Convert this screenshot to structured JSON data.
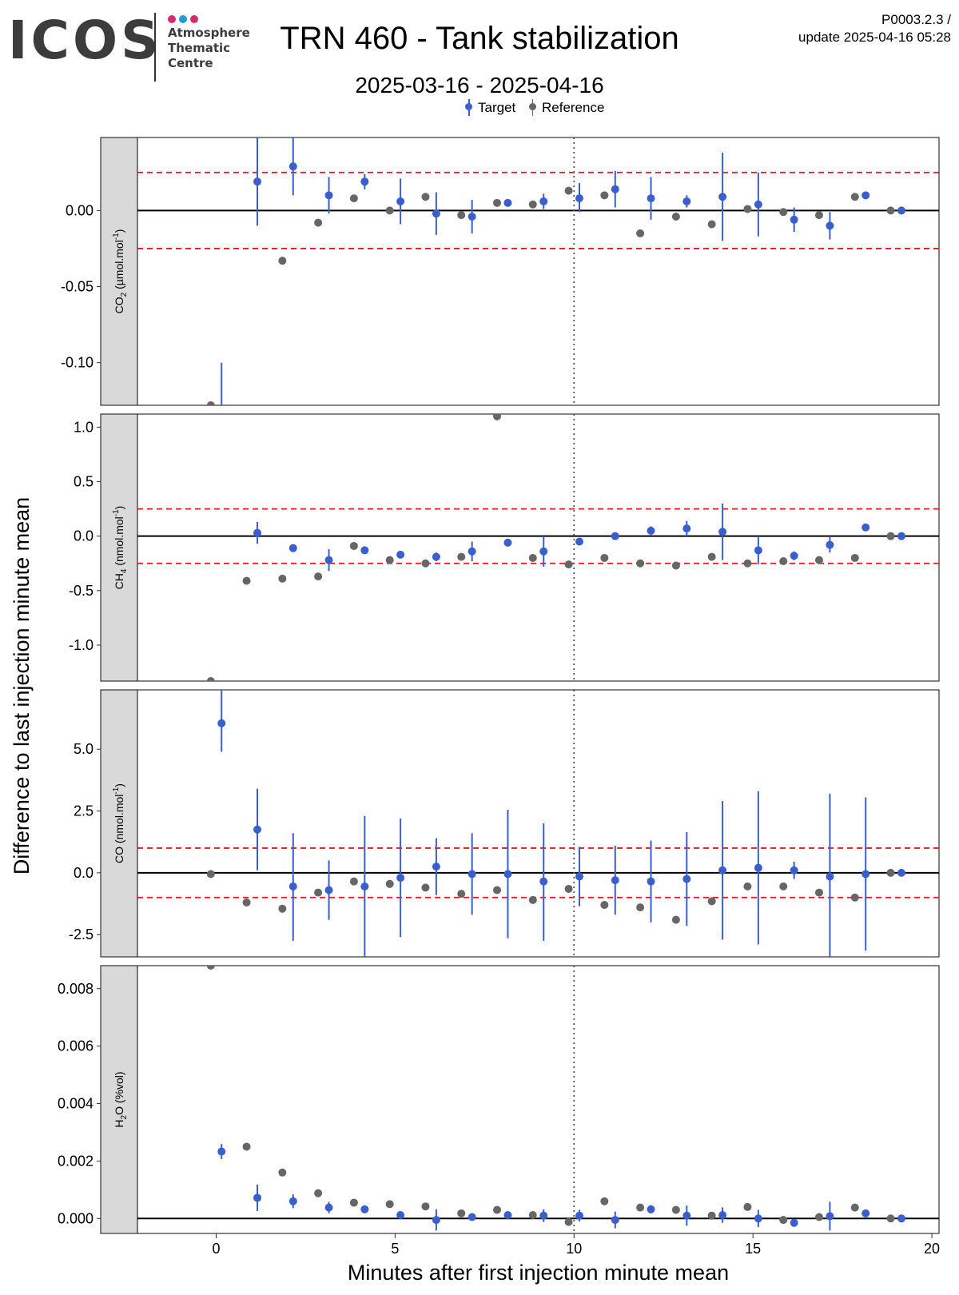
{
  "header": {
    "logo_text": "ICOS",
    "logo_subtitle": [
      "Atmosphere",
      "Thematic",
      "Centre"
    ],
    "logo_dot_colors": [
      "#d42d6b",
      "#1f9bd7",
      "#d42d6b"
    ],
    "title": "TRN 460 - Tank stabilization",
    "subtitle": "2025-03-16 - 2025-04-16",
    "meta_line1": "P0003.2.3 /",
    "meta_line2": "update  2025-04-16 05:28"
  },
  "legend": {
    "target": "Target",
    "reference": "Reference"
  },
  "colors": {
    "target": "#3a5fcd",
    "reference": "#666666",
    "threshold": "#e8171c",
    "zero": "#000000",
    "strip": "#d9d9d9"
  },
  "chart_data": {
    "type": "scatter",
    "xlabel": "Minutes after first injection minute mean",
    "ylabel": "Difference to last injection minute mean",
    "xlim": [
      -2.2,
      20.2
    ],
    "x_ticks": [
      0,
      5,
      10,
      15,
      20
    ],
    "vline_x": 10,
    "grid": false,
    "legend_position": "top",
    "panels": [
      {
        "strip": [
          "CO",
          "2",
          " (µmol.mol",
          "-1",
          ")"
        ],
        "ylim": [
          -0.128,
          0.048
        ],
        "yticks": [
          0.0,
          -0.05,
          -0.1
        ],
        "ytick_labels": [
          "0.00",
          "-0.05",
          "-0.10"
        ],
        "threshold": 0.025,
        "reference": [
          [
            -0.15,
            -0.128
          ],
          [
            0.85,
            -0.132
          ],
          [
            1.85,
            -0.033
          ],
          [
            2.85,
            -0.008
          ],
          [
            3.85,
            0.008
          ],
          [
            4.85,
            0.0
          ],
          [
            5.85,
            0.009
          ],
          [
            6.85,
            -0.003
          ],
          [
            7.85,
            0.005
          ],
          [
            8.85,
            0.004
          ],
          [
            9.85,
            0.013
          ],
          [
            10.85,
            0.01
          ],
          [
            11.85,
            -0.015
          ],
          [
            12.85,
            -0.004
          ],
          [
            13.85,
            -0.009
          ],
          [
            14.85,
            0.001
          ],
          [
            15.85,
            -0.001
          ],
          [
            16.85,
            -0.003
          ],
          [
            17.85,
            0.009
          ],
          [
            18.85,
            0.0
          ]
        ],
        "target": [
          [
            0.15,
            -0.15,
            -0.2,
            -0.1
          ],
          [
            1.15,
            0.019,
            -0.01,
            0.048
          ],
          [
            2.15,
            0.029,
            0.01,
            0.048
          ],
          [
            3.15,
            0.01,
            -0.002,
            0.022
          ],
          [
            4.15,
            0.019,
            0.014,
            0.024
          ],
          [
            5.15,
            0.006,
            -0.009,
            0.021
          ],
          [
            6.15,
            -0.002,
            -0.016,
            0.012
          ],
          [
            7.15,
            -0.004,
            -0.015,
            0.007
          ],
          [
            8.15,
            0.005,
            0.005,
            0.005
          ],
          [
            9.15,
            0.006,
            0.001,
            0.011
          ],
          [
            10.15,
            0.008,
            -0.001,
            0.018
          ],
          [
            11.15,
            0.014,
            0.002,
            0.026
          ],
          [
            12.15,
            0.008,
            -0.006,
            0.022
          ],
          [
            13.15,
            0.006,
            0.002,
            0.01
          ],
          [
            14.15,
            0.009,
            -0.02,
            0.038
          ],
          [
            15.15,
            0.004,
            -0.017,
            0.025
          ],
          [
            16.15,
            -0.006,
            -0.014,
            0.002
          ],
          [
            17.15,
            -0.01,
            -0.019,
            -0.001
          ],
          [
            18.15,
            0.01,
            0.01,
            0.01
          ],
          [
            19.15,
            0.0,
            0.0,
            0.0
          ]
        ]
      },
      {
        "strip": [
          "CH",
          "4",
          " (nmol.mol",
          "-1",
          ")"
        ],
        "ylim": [
          -1.33,
          1.12
        ],
        "yticks": [
          1.0,
          0.5,
          0.0,
          -0.5,
          -1.0
        ],
        "ytick_labels": [
          "1.0",
          "0.5",
          "0.0",
          "-0.5",
          "-1.0"
        ],
        "threshold": 0.25,
        "reference": [
          [
            -0.15,
            -1.33
          ],
          [
            0.85,
            -0.41
          ],
          [
            1.85,
            -0.39
          ],
          [
            2.85,
            -0.37
          ],
          [
            3.85,
            -0.09
          ],
          [
            4.85,
            -0.22
          ],
          [
            5.85,
            -0.25
          ],
          [
            6.85,
            -0.19
          ],
          [
            7.85,
            1.1
          ],
          [
            8.85,
            -0.2
          ],
          [
            9.85,
            -0.26
          ],
          [
            10.85,
            -0.2
          ],
          [
            11.85,
            -0.25
          ],
          [
            12.85,
            -0.27
          ],
          [
            13.85,
            -0.19
          ],
          [
            14.85,
            -0.25
          ],
          [
            15.85,
            -0.23
          ],
          [
            16.85,
            -0.22
          ],
          [
            17.85,
            -0.2
          ],
          [
            18.85,
            0.0
          ]
        ],
        "target": [
          [
            1.15,
            0.03,
            -0.07,
            0.13
          ],
          [
            2.15,
            -0.11,
            -0.11,
            -0.11
          ],
          [
            3.15,
            -0.22,
            -0.32,
            -0.12
          ],
          [
            4.15,
            -0.13,
            -0.16,
            -0.1
          ],
          [
            5.15,
            -0.17,
            -0.17,
            -0.17
          ],
          [
            6.15,
            -0.19,
            -0.23,
            -0.15
          ],
          [
            7.15,
            -0.14,
            -0.23,
            -0.05
          ],
          [
            8.15,
            -0.06,
            -0.06,
            -0.06
          ],
          [
            9.15,
            -0.14,
            -0.28,
            0.0
          ],
          [
            10.15,
            -0.05,
            -0.05,
            -0.05
          ],
          [
            11.15,
            0.0,
            0.0,
            0.0
          ],
          [
            12.15,
            0.05,
            0.01,
            0.09
          ],
          [
            13.15,
            0.07,
            0.0,
            0.14
          ],
          [
            14.15,
            0.04,
            -0.22,
            0.3
          ],
          [
            15.15,
            -0.13,
            -0.26,
            0.0
          ],
          [
            16.15,
            -0.18,
            -0.22,
            -0.14
          ],
          [
            17.15,
            -0.08,
            -0.15,
            -0.01
          ],
          [
            18.15,
            0.08,
            0.06,
            0.1
          ],
          [
            19.15,
            0.0,
            0.0,
            0.0
          ]
        ]
      },
      {
        "strip": [
          "CO (nmol.mol",
          "",
          "",
          "-1",
          ")"
        ],
        "ylim": [
          -3.4,
          7.4
        ],
        "yticks": [
          5.0,
          2.5,
          0.0,
          -2.5
        ],
        "ytick_labels": [
          "5.0",
          "2.5",
          "0.0",
          "-2.5"
        ],
        "threshold": 1.0,
        "reference": [
          [
            -0.15,
            -0.05
          ],
          [
            0.85,
            -1.2
          ],
          [
            1.85,
            -1.45
          ],
          [
            2.85,
            -0.8
          ],
          [
            3.85,
            -0.35
          ],
          [
            4.85,
            -0.45
          ],
          [
            5.85,
            -0.6
          ],
          [
            6.85,
            -0.85
          ],
          [
            7.85,
            -0.7
          ],
          [
            8.85,
            -1.1
          ],
          [
            9.85,
            -0.65
          ],
          [
            10.85,
            -1.3
          ],
          [
            11.85,
            -1.4
          ],
          [
            12.85,
            -1.9
          ],
          [
            13.85,
            -1.15
          ],
          [
            14.85,
            -0.55
          ],
          [
            15.85,
            -0.55
          ],
          [
            16.85,
            -0.8
          ],
          [
            17.85,
            -1.0
          ],
          [
            18.85,
            0.0
          ]
        ],
        "target": [
          [
            0.15,
            6.05,
            4.9,
            7.4
          ],
          [
            1.15,
            1.75,
            0.1,
            3.4
          ],
          [
            2.15,
            -0.55,
            -2.75,
            1.6
          ],
          [
            3.15,
            -0.7,
            -1.9,
            0.5
          ],
          [
            4.15,
            -0.55,
            -3.4,
            2.3
          ],
          [
            5.15,
            -0.2,
            -2.6,
            2.2
          ],
          [
            6.15,
            0.25,
            -0.9,
            1.4
          ],
          [
            7.15,
            -0.05,
            -1.7,
            1.6
          ],
          [
            8.15,
            -0.05,
            -2.65,
            2.55
          ],
          [
            9.15,
            -0.35,
            -2.75,
            2.0
          ],
          [
            10.15,
            -0.15,
            -1.35,
            1.05
          ],
          [
            11.15,
            -0.3,
            -1.7,
            1.1
          ],
          [
            12.15,
            -0.35,
            -2.0,
            1.3
          ],
          [
            13.15,
            -0.25,
            -2.15,
            1.65
          ],
          [
            14.15,
            0.1,
            -2.7,
            2.9
          ],
          [
            15.15,
            0.2,
            -2.9,
            3.3
          ],
          [
            16.15,
            0.1,
            -0.25,
            0.45
          ],
          [
            17.15,
            -0.15,
            -3.4,
            3.2
          ],
          [
            18.15,
            -0.05,
            -3.15,
            3.05
          ],
          [
            19.15,
            0.0,
            0.0,
            0.0
          ]
        ]
      },
      {
        "strip": [
          "H",
          "2",
          "O (%vol)",
          "",
          ""
        ],
        "ylim": [
          -0.00052,
          0.0088
        ],
        "yticks": [
          0.008,
          0.006,
          0.004,
          0.002,
          0.0
        ],
        "ytick_labels": [
          "0.008",
          "0.006",
          "0.004",
          "0.002",
          "0.000"
        ],
        "threshold": null,
        "reference": [
          [
            -0.15,
            0.0088
          ],
          [
            0.85,
            0.0025
          ],
          [
            1.85,
            0.0016
          ],
          [
            2.85,
            0.00088
          ],
          [
            3.85,
            0.00055
          ],
          [
            4.85,
            0.0005
          ],
          [
            5.85,
            0.00042
          ],
          [
            6.85,
            0.00018
          ],
          [
            7.85,
            0.0003
          ],
          [
            8.85,
            0.00012
          ],
          [
            9.85,
            -0.00012
          ],
          [
            10.85,
            0.0006
          ],
          [
            11.85,
            0.00038
          ],
          [
            12.85,
            0.0003
          ],
          [
            13.85,
            0.0001
          ],
          [
            14.85,
            0.0004
          ],
          [
            15.85,
            -5e-05
          ],
          [
            16.85,
            5e-05
          ],
          [
            17.85,
            0.00038
          ],
          [
            18.85,
            0.0
          ]
        ],
        "target": [
          [
            0.15,
            0.00233,
            0.00207,
            0.00259
          ],
          [
            1.15,
            0.00072,
            0.00026,
            0.00118
          ],
          [
            2.15,
            0.0006,
            0.00036,
            0.00084
          ],
          [
            3.15,
            0.00038,
            0.00018,
            0.00058
          ],
          [
            4.15,
            0.00032,
            0.00032,
            0.00032
          ],
          [
            5.15,
            0.00012,
            0.00012,
            0.00012
          ],
          [
            6.15,
            -5e-05,
            -0.00042,
            0.00032
          ],
          [
            7.15,
            5e-05,
            5e-05,
            5e-05
          ],
          [
            8.15,
            0.00012,
            0.00012,
            0.00012
          ],
          [
            9.15,
            0.0001,
            -0.00012,
            0.00032
          ],
          [
            10.15,
            0.0001,
            -0.0001,
            0.0003
          ],
          [
            11.15,
            -5e-05,
            -0.00034,
            0.00024
          ],
          [
            12.15,
            0.00032,
            0.00018,
            0.00046
          ],
          [
            13.15,
            0.0001,
            -0.00025,
            0.00045
          ],
          [
            14.15,
            0.00012,
            -0.00015,
            0.00039
          ],
          [
            15.15,
            0.0,
            -0.0003,
            0.0003
          ],
          [
            16.15,
            -0.00015,
            -0.00015,
            -0.00015
          ],
          [
            17.15,
            8e-05,
            -0.00042,
            0.00058
          ],
          [
            18.15,
            0.00018,
            0.00018,
            0.00018
          ],
          [
            19.15,
            0.0,
            0.0,
            0.0
          ]
        ]
      }
    ]
  }
}
